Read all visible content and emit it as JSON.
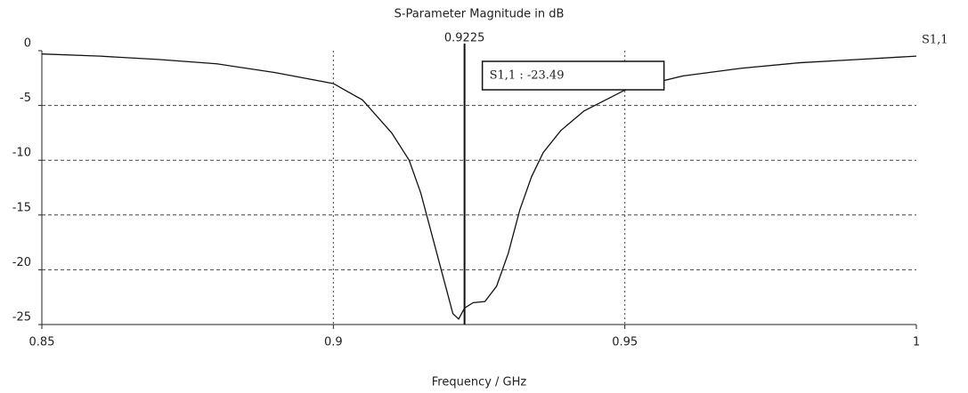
{
  "chart_data": {
    "type": "line",
    "title": "S-Parameter Magnitude in dB",
    "x_label": "Frequency / GHz",
    "xlim": [
      0.85,
      1
    ],
    "ylim": [
      -25,
      0
    ],
    "xticks": [
      0.85,
      0.9,
      0.95,
      1
    ],
    "yticks": [
      0,
      -5,
      -10,
      -15,
      -20,
      -25
    ],
    "grid": true,
    "legend": "right",
    "x": [
      0.85,
      0.86,
      0.87,
      0.88,
      0.89,
      0.9,
      0.905,
      0.91,
      0.913,
      0.915,
      0.917,
      0.919,
      0.9205,
      0.9215,
      0.9225,
      0.924,
      0.926,
      0.928,
      0.93,
      0.932,
      0.934,
      0.936,
      0.939,
      0.943,
      0.95,
      0.96,
      0.97,
      0.98,
      0.99,
      1
    ],
    "series": [
      {
        "name": "S1,1",
        "color": "#111111",
        "values": [
          -0.3,
          -0.5,
          -0.8,
          -1.2,
          -2,
          -3,
          -4.5,
          -7.5,
          -10,
          -13,
          -17,
          -21,
          -24,
          -24.5,
          -23.49,
          -23,
          -22.9,
          -21.5,
          -18.5,
          -14.5,
          -11.5,
          -9.3,
          -7.3,
          -5.5,
          -3.6,
          -2.3,
          -1.6,
          -1.1,
          -0.8,
          -0.5
        ]
      }
    ],
    "marker": {
      "x": 0.9225,
      "value": -23.49,
      "label": "S1,1 : -23.49"
    }
  }
}
